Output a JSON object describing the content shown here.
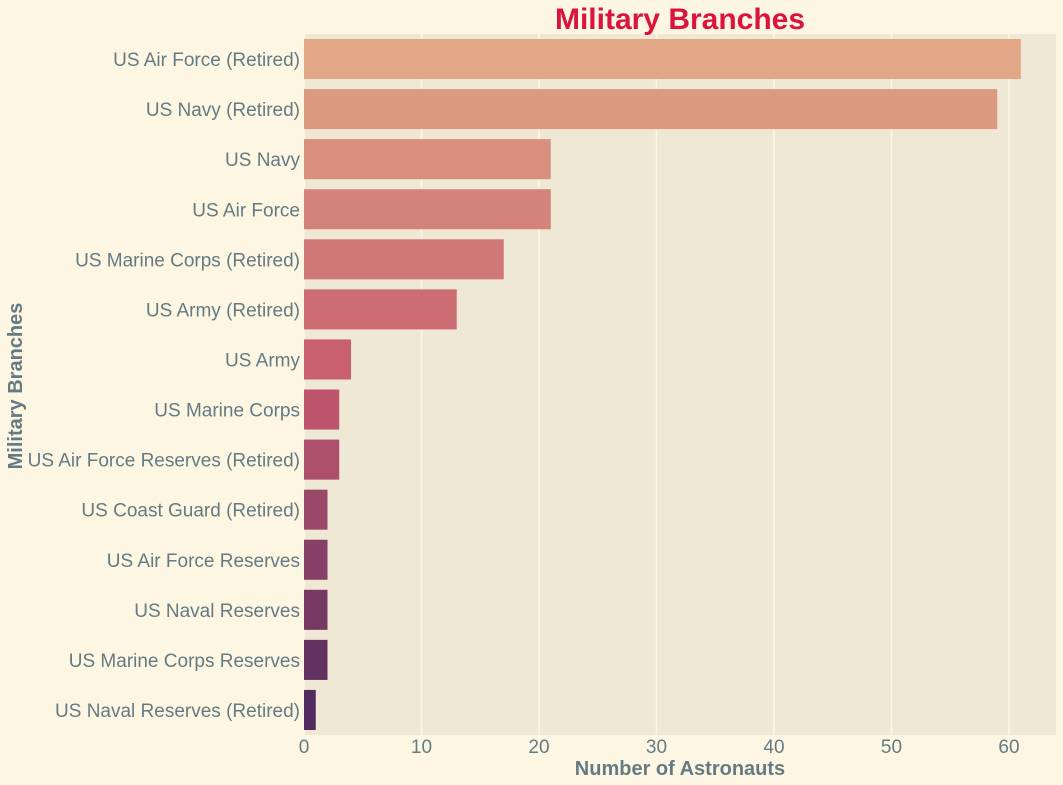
{
  "chart_data": {
    "type": "bar",
    "orientation": "horizontal",
    "title": "Military Branches",
    "xlabel": "Number of Astronauts",
    "ylabel": "Military Branches",
    "categories": [
      "US Air Force (Retired)",
      "US Navy (Retired)",
      "US Navy",
      "US Air Force",
      "US Marine Corps (Retired)",
      "US Army (Retired)",
      "US Army",
      "US Marine Corps",
      "US Air Force Reserves (Retired)",
      "US Coast Guard (Retired)",
      "US Air Force Reserves",
      "US Naval Reserves",
      "US Marine Corps Reserves",
      "US Naval Reserves (Retired)"
    ],
    "values": [
      61,
      59,
      21,
      21,
      17,
      13,
      4,
      3,
      3,
      2,
      2,
      2,
      2,
      1
    ],
    "xlim": [
      0,
      64
    ],
    "xticks": [
      0,
      10,
      20,
      30,
      40,
      50,
      60
    ],
    "grid": true,
    "colors": {
      "page_background": "#fdf6e3",
      "plot_background": "#eee8d5",
      "title": "#dc143c",
      "text": "#657b83",
      "bar_gradient_start": "#e0a685",
      "bar_gradient_mid": "#c65a6e",
      "bar_gradient_end": "#512a5e"
    }
  }
}
